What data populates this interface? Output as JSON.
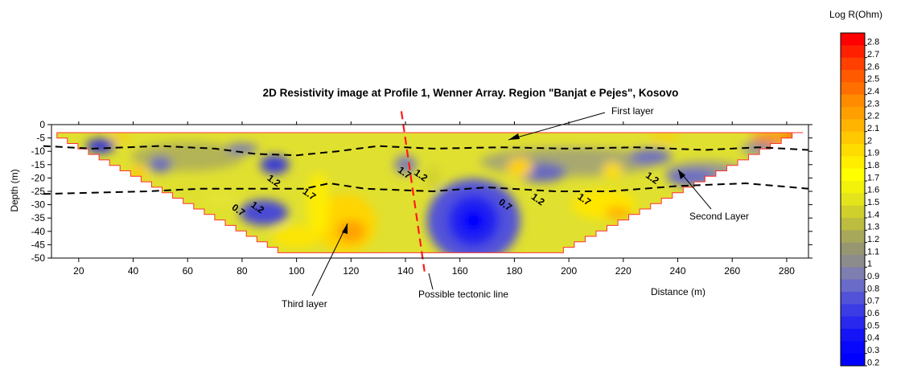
{
  "chart_data": {
    "type": "heatmap",
    "title": "2D Resistivity image at Profile 1, Wenner Array. Region \"Banjat e Pejes\", Kosovo",
    "xlabel": "Distance (m)",
    "ylabel": "Depth (m)",
    "xlim": [
      10,
      288
    ],
    "ylim": [
      -50,
      0
    ],
    "x_ticks": [
      20,
      40,
      60,
      80,
      100,
      120,
      140,
      160,
      180,
      200,
      220,
      240,
      260,
      280
    ],
    "y_ticks": [
      0,
      -5,
      -10,
      -15,
      -20,
      -25,
      -30,
      -35,
      -40,
      -45,
      -50
    ],
    "grid": false,
    "colorbar": {
      "title": "Log R(Ohm)",
      "levels": [
        2.8,
        2.7,
        2.6,
        2.5,
        2.4,
        2.3,
        2.2,
        2.1,
        2,
        1.9,
        1.8,
        1.7,
        1.6,
        1.5,
        1.4,
        1.3,
        1.2,
        1.1,
        1,
        0.9,
        0.8,
        0.7,
        0.6,
        0.5,
        0.4,
        0.3,
        0.2
      ],
      "colors": [
        "#ff0000",
        "#ff2000",
        "#ff4000",
        "#ff5a00",
        "#ff7000",
        "#ff8c00",
        "#ffa000",
        "#ffb400",
        "#ffc800",
        "#ffdc00",
        "#ffee00",
        "#ffff00",
        "#f2f20a",
        "#e4e41c",
        "#d0d02c",
        "#bcbc40",
        "#a8a85a",
        "#969670",
        "#8c8c8c",
        "#7e7eb0",
        "#6a6ac8",
        "#5252d8",
        "#3c3ce4",
        "#2828ee",
        "#1414f6",
        "#0808fc",
        "#0000ff"
      ]
    },
    "annotations": [
      {
        "id": "first-layer",
        "text": "First layer"
      },
      {
        "id": "second-layer",
        "text": "Second Layer"
      },
      {
        "id": "third-layer",
        "text": "Third layer"
      },
      {
        "id": "tectonic-line",
        "text": "Possible tectonic line"
      }
    ],
    "contour_labels": [
      {
        "text": "1.2",
        "x": 91,
        "y": -22
      },
      {
        "text": "1.7",
        "x": 104,
        "y": -27
      },
      {
        "text": "1.2",
        "x": 85,
        "y": -32
      },
      {
        "text": "0.7",
        "x": 78,
        "y": -33
      },
      {
        "text": "1.7",
        "x": 139,
        "y": -19
      },
      {
        "text": "1.2",
        "x": 145,
        "y": -20
      },
      {
        "text": "0.7",
        "x": 176,
        "y": -31
      },
      {
        "text": "1.2",
        "x": 188,
        "y": -29
      },
      {
        "text": "1.7",
        "x": 205,
        "y": -29
      },
      {
        "text": "1.2",
        "x": 230,
        "y": -21
      }
    ]
  }
}
